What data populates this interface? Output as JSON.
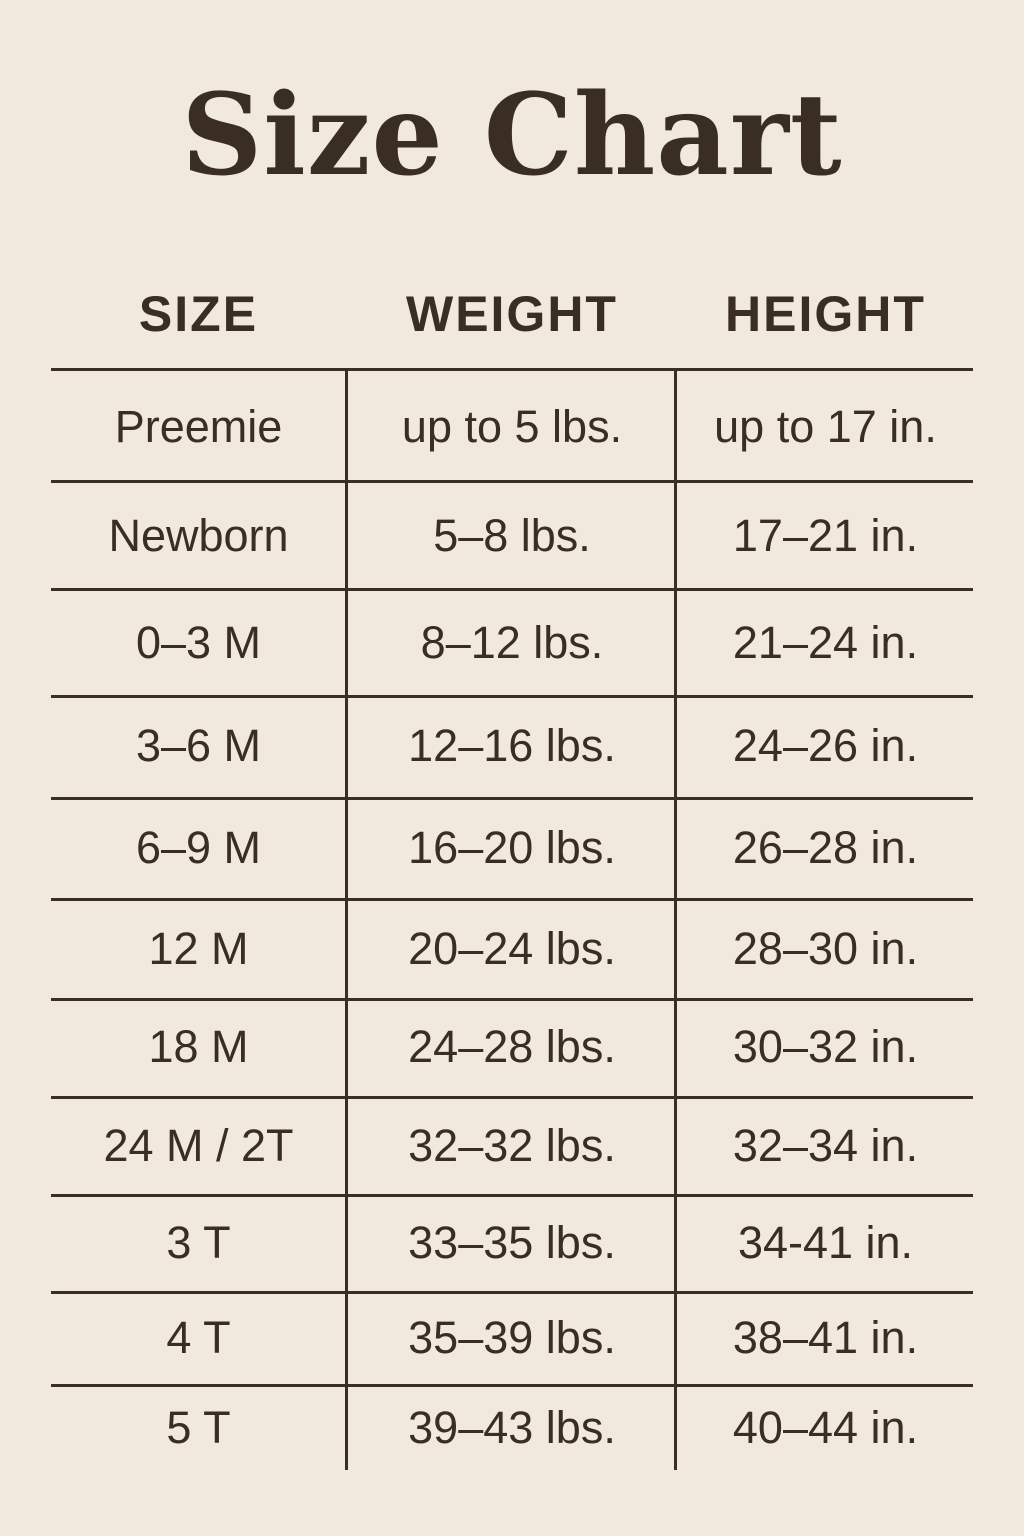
{
  "title": "Size Chart",
  "columns": [
    "SIZE",
    "WEIGHT",
    "HEIGHT"
  ],
  "rows": [
    [
      "Preemie",
      "up to 5 lbs.",
      "up to 17 in."
    ],
    [
      "Newborn",
      "5–8 lbs.",
      "17–21 in."
    ],
    [
      "0–3 M",
      "8–12 lbs.",
      "21–24 in."
    ],
    [
      "3–6 M",
      "12–16 lbs.",
      "24–26 in."
    ],
    [
      "6–9 M",
      "16–20 lbs.",
      "26–28 in."
    ],
    [
      "12 M",
      "20–24 lbs.",
      "28–30 in."
    ],
    [
      "18 M",
      "24–28 lbs.",
      "30–32 in."
    ],
    [
      "24 M / 2T",
      "32–32 lbs.",
      "32–34 in."
    ],
    [
      "3 T",
      "33–35 lbs.",
      "34-41 in."
    ],
    [
      "4 T",
      "35–39 lbs.",
      "38–41 in."
    ],
    [
      "5 T",
      "39–43 lbs.",
      "40–44 in."
    ]
  ],
  "colors": {
    "background": "#f1e9de",
    "text": "#3a2d24"
  }
}
